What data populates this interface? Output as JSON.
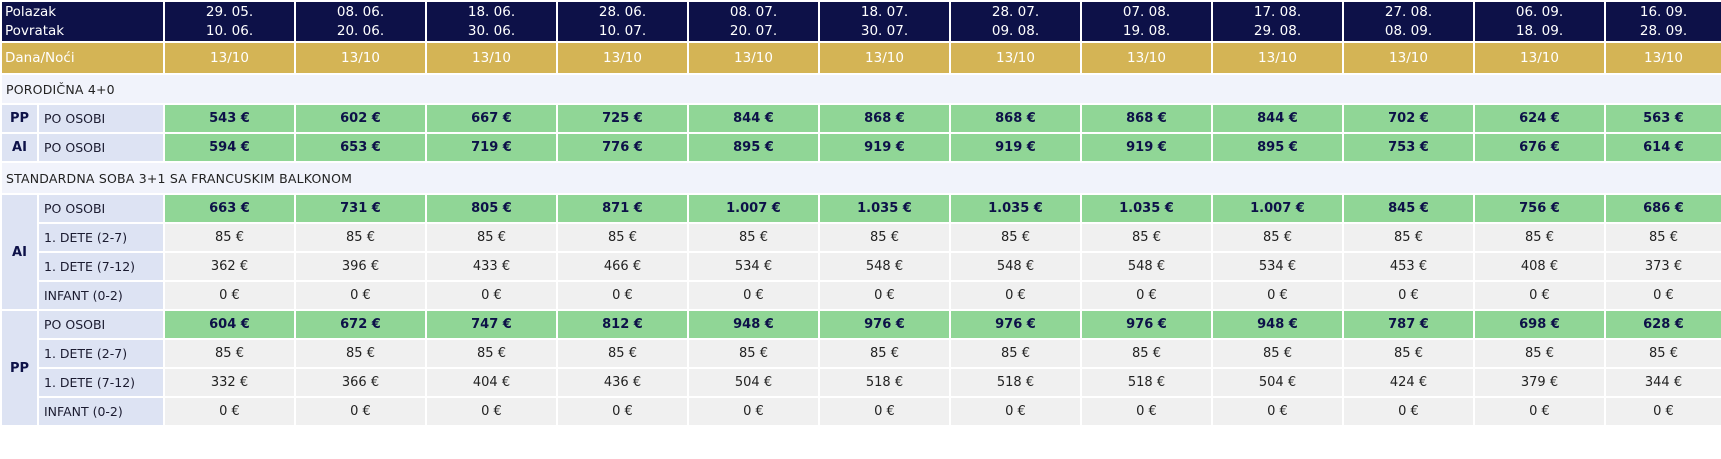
{
  "header": {
    "departure_label": "Polazak",
    "return_label": "Povratak",
    "nights_label": "Dana/Noći"
  },
  "dates": [
    {
      "dep": "29. 05.",
      "ret": "10. 06.",
      "nights": "13/10"
    },
    {
      "dep": "08. 06.",
      "ret": "20. 06.",
      "nights": "13/10"
    },
    {
      "dep": "18. 06.",
      "ret": "30. 06.",
      "nights": "13/10"
    },
    {
      "dep": "28. 06.",
      "ret": "10. 07.",
      "nights": "13/10"
    },
    {
      "dep": "08. 07.",
      "ret": "20. 07.",
      "nights": "13/10"
    },
    {
      "dep": "18. 07.",
      "ret": "30. 07.",
      "nights": "13/10"
    },
    {
      "dep": "28. 07.",
      "ret": "09. 08.",
      "nights": "13/10"
    },
    {
      "dep": "07. 08.",
      "ret": "19. 08.",
      "nights": "13/10"
    },
    {
      "dep": "17. 08.",
      "ret": "29. 08.",
      "nights": "13/10"
    },
    {
      "dep": "27. 08.",
      "ret": "08. 09.",
      "nights": "13/10"
    },
    {
      "dep": "06. 09.",
      "ret": "18. 09.",
      "nights": "13/10"
    },
    {
      "dep": "16. 09.",
      "ret": "28. 09.",
      "nights": "13/10"
    }
  ],
  "sections": [
    {
      "title": "PORODIČNA 4+0",
      "rows": [
        {
          "board": "PP",
          "label": "PO OSOBI",
          "values": [
            "543 €",
            "602 €",
            "667 €",
            "725 €",
            "844 €",
            "868 €",
            "868 €",
            "868 €",
            "844 €",
            "702 €",
            "624 €",
            "563 €"
          ]
        },
        {
          "board": "AI",
          "label": "PO OSOBI",
          "values": [
            "594 €",
            "653 €",
            "719 €",
            "776 €",
            "895 €",
            "919 €",
            "919 €",
            "919 €",
            "895 €",
            "753 €",
            "676 €",
            "614 €"
          ]
        }
      ]
    },
    {
      "title": "STANDARDNA SOBA 3+1 SA FRANCUSKIM BALKONOM",
      "groups": [
        {
          "board": "AI",
          "rows": [
            {
              "label": "PO OSOBI",
              "values": [
                "663 €",
                "731 €",
                "805 €",
                "871 €",
                "1.007 €",
                "1.035 €",
                "1.035 €",
                "1.035 €",
                "1.007 €",
                "845 €",
                "756 €",
                "686 €"
              ]
            },
            {
              "label": "1. DETE (2-7)",
              "values": [
                "85 €",
                "85 €",
                "85 €",
                "85 €",
                "85 €",
                "85 €",
                "85 €",
                "85 €",
                "85 €",
                "85 €",
                "85 €",
                "85 €"
              ]
            },
            {
              "label": "1. DETE (7-12)",
              "values": [
                "362 €",
                "396 €",
                "433 €",
                "466 €",
                "534 €",
                "548 €",
                "548 €",
                "548 €",
                "534 €",
                "453 €",
                "408 €",
                "373 €"
              ]
            },
            {
              "label": "INFANT (0-2)",
              "values": [
                "0 €",
                "0 €",
                "0 €",
                "0 €",
                "0 €",
                "0 €",
                "0 €",
                "0 €",
                "0 €",
                "0 €",
                "0 €",
                "0 €"
              ]
            }
          ]
        },
        {
          "board": "PP",
          "rows": [
            {
              "label": "PO OSOBI",
              "values": [
                "604 €",
                "672 €",
                "747 €",
                "812 €",
                "948 €",
                "976 €",
                "976 €",
                "976 €",
                "948 €",
                "787 €",
                "698 €",
                "628 €"
              ]
            },
            {
              "label": "1. DETE (2-7)",
              "values": [
                "85 €",
                "85 €",
                "85 €",
                "85 €",
                "85 €",
                "85 €",
                "85 €",
                "85 €",
                "85 €",
                "85 €",
                "85 €",
                "85 €"
              ]
            },
            {
              "label": "1. DETE (7-12)",
              "values": [
                "332 €",
                "366 €",
                "404 €",
                "436 €",
                "504 €",
                "518 €",
                "518 €",
                "518 €",
                "504 €",
                "424 €",
                "379 €",
                "344 €"
              ]
            },
            {
              "label": "INFANT (0-2)",
              "values": [
                "0 €",
                "0 €",
                "0 €",
                "0 €",
                "0 €",
                "0 €",
                "0 €",
                "0 €",
                "0 €",
                "0 €",
                "0 €",
                "0 €"
              ]
            }
          ]
        }
      ]
    }
  ],
  "colors": {
    "header_bg": "#0d1148",
    "nights_bg": "#d4b455",
    "price_bg": "#90d696",
    "child_bg": "#f0f0f0",
    "label_bg": "#dde3f3",
    "section_bg": "#f1f3fb"
  }
}
